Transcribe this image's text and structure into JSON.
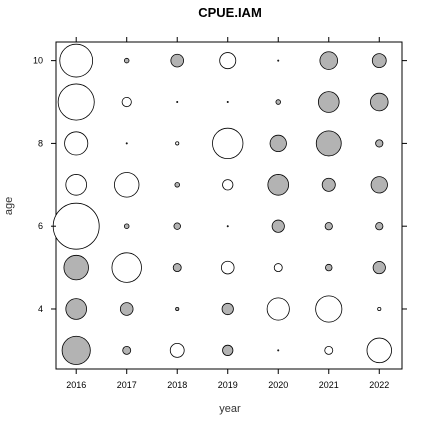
{
  "chart_data": {
    "type": "scatter",
    "subtype": "bubble",
    "title": "CPUE.IAM",
    "xlabel": "year",
    "ylabel": "age",
    "x_ticks": [
      2016,
      2017,
      2018,
      2019,
      2020,
      2021,
      2022
    ],
    "y_ticks": [
      4,
      6,
      8,
      10
    ],
    "xlim": [
      2015.6,
      2022.45
    ],
    "ylim": [
      2.55,
      10.45
    ],
    "grid": false,
    "legend": "none",
    "colors": {
      "negative_fill": "#b3b3b3",
      "positive_fill": "#ffffff",
      "stroke": "#000000"
    },
    "encoding": "bubble area proportional to |value|; grey fill = negative residual, white fill = positive residual",
    "points": [
      {
        "year": 2016,
        "age": 10,
        "value": 1.0
      },
      {
        "year": 2016,
        "age": 9,
        "value": 1.21
      },
      {
        "year": 2016,
        "age": 8,
        "value": 0.5
      },
      {
        "year": 2016,
        "age": 7,
        "value": 0.4
      },
      {
        "year": 2016,
        "age": 6,
        "value": 1.96
      },
      {
        "year": 2016,
        "age": 5,
        "value": -0.56
      },
      {
        "year": 2016,
        "age": 4,
        "value": -0.4
      },
      {
        "year": 2016,
        "age": 3,
        "value": -0.74
      },
      {
        "year": 2017,
        "age": 10,
        "value": -0.02
      },
      {
        "year": 2017,
        "age": 9,
        "value": 0.08
      },
      {
        "year": 2017,
        "age": 8,
        "value": 0.0
      },
      {
        "year": 2017,
        "age": 7,
        "value": 0.56
      },
      {
        "year": 2017,
        "age": 6,
        "value": -0.02
      },
      {
        "year": 2017,
        "age": 5,
        "value": 0.81
      },
      {
        "year": 2017,
        "age": 4,
        "value": -0.15
      },
      {
        "year": 2017,
        "age": 3,
        "value": -0.06
      },
      {
        "year": 2018,
        "age": 10,
        "value": -0.15
      },
      {
        "year": 2018,
        "age": 9,
        "value": 0.0
      },
      {
        "year": 2018,
        "age": 8,
        "value": 0.01
      },
      {
        "year": 2018,
        "age": 7,
        "value": -0.02
      },
      {
        "year": 2018,
        "age": 6,
        "value": -0.04
      },
      {
        "year": 2018,
        "age": 5,
        "value": -0.06
      },
      {
        "year": 2018,
        "age": 4,
        "value": -0.01
      },
      {
        "year": 2018,
        "age": 3,
        "value": 0.18
      },
      {
        "year": 2019,
        "age": 10,
        "value": 0.24
      },
      {
        "year": 2019,
        "age": 9,
        "value": 0.0
      },
      {
        "year": 2019,
        "age": 8,
        "value": 0.86
      },
      {
        "year": 2019,
        "age": 7,
        "value": 0.1
      },
      {
        "year": 2019,
        "age": 6,
        "value": 0.0
      },
      {
        "year": 2019,
        "age": 5,
        "value": 0.15
      },
      {
        "year": 2019,
        "age": 4,
        "value": -0.12
      },
      {
        "year": 2019,
        "age": 3,
        "value": -0.1
      },
      {
        "year": 2020,
        "age": 10,
        "value": 0.0
      },
      {
        "year": 2020,
        "age": 9,
        "value": -0.02
      },
      {
        "year": 2020,
        "age": 8,
        "value": -0.25
      },
      {
        "year": 2020,
        "age": 7,
        "value": -0.4
      },
      {
        "year": 2020,
        "age": 6,
        "value": -0.14
      },
      {
        "year": 2020,
        "age": 5,
        "value": 0.06
      },
      {
        "year": 2020,
        "age": 4,
        "value": 0.46
      },
      {
        "year": 2020,
        "age": 3,
        "value": 0.0
      },
      {
        "year": 2021,
        "age": 10,
        "value": -0.29
      },
      {
        "year": 2021,
        "age": 9,
        "value": -0.4
      },
      {
        "year": 2021,
        "age": 8,
        "value": -0.58
      },
      {
        "year": 2021,
        "age": 7,
        "value": -0.16
      },
      {
        "year": 2021,
        "age": 6,
        "value": -0.05
      },
      {
        "year": 2021,
        "age": 5,
        "value": -0.04
      },
      {
        "year": 2021,
        "age": 4,
        "value": 0.64
      },
      {
        "year": 2021,
        "age": 3,
        "value": 0.06
      },
      {
        "year": 2022,
        "age": 10,
        "value": -0.18
      },
      {
        "year": 2022,
        "age": 9,
        "value": -0.29
      },
      {
        "year": 2022,
        "age": 8,
        "value": -0.05
      },
      {
        "year": 2022,
        "age": 7,
        "value": -0.25
      },
      {
        "year": 2022,
        "age": 6,
        "value": -0.05
      },
      {
        "year": 2022,
        "age": 5,
        "value": -0.14
      },
      {
        "year": 2022,
        "age": 4,
        "value": 0.01
      },
      {
        "year": 2022,
        "age": 3,
        "value": 0.56
      }
    ]
  }
}
